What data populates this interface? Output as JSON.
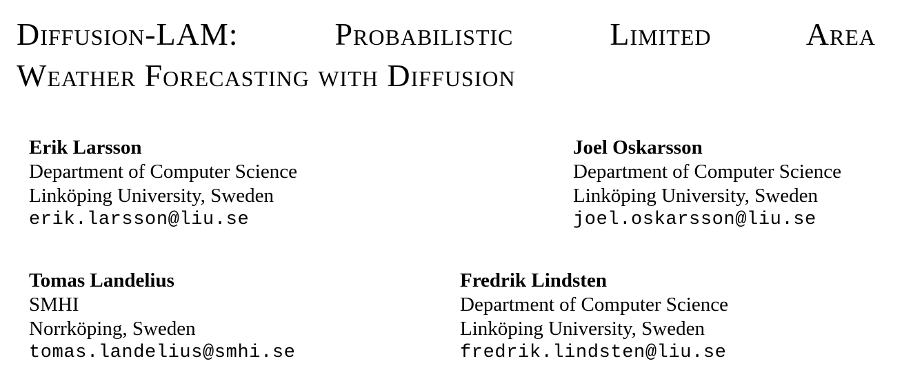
{
  "paper": {
    "title_line1": "Diffusion-LAM: Probabilistic Limited Area",
    "title_line2": "Weather Forecasting with Diffusion",
    "authors": [
      {
        "name": "Erik Larsson",
        "affiliation_line1": "Department of Computer Science",
        "affiliation_line2": "Linköping University, Sweden",
        "email": "erik.larsson@liu.se"
      },
      {
        "name": "Joel Oskarsson",
        "affiliation_line1": "Department of Computer Science",
        "affiliation_line2": "Linköping University, Sweden",
        "email": "joel.oskarsson@liu.se"
      },
      {
        "name": "Tomas Landelius",
        "affiliation_line1": "SMHI",
        "affiliation_line2": "Norrköping, Sweden",
        "email": "tomas.landelius@smhi.se"
      },
      {
        "name": "Fredrik Lindsten",
        "affiliation_line1": "Department of Computer Science",
        "affiliation_line2": "Linköping University, Sweden",
        "email": "fredrik.lindsten@liu.se"
      }
    ]
  }
}
